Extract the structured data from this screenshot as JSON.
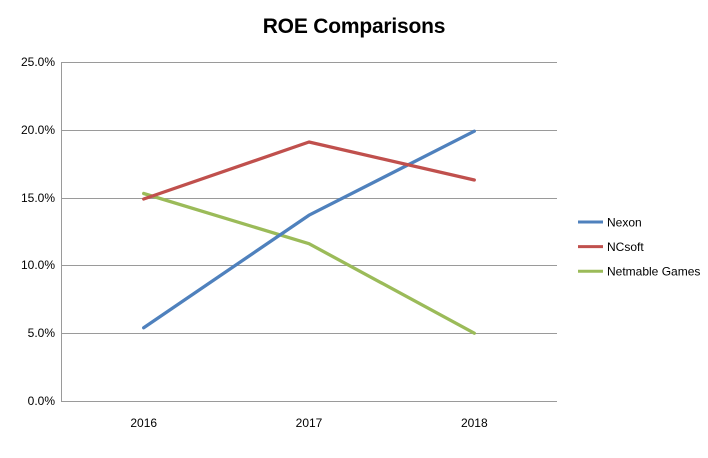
{
  "chart_data": {
    "type": "line",
    "title": "ROE Comparisons",
    "categories": [
      "2016",
      "2017",
      "2018"
    ],
    "series": [
      {
        "name": "Nexon",
        "color": "#4F81BD",
        "values": [
          5.4,
          13.7,
          19.9
        ]
      },
      {
        "name": "NCsoft",
        "color": "#C0504D",
        "values": [
          14.9,
          19.1,
          16.3
        ]
      },
      {
        "name": "Netmable Games",
        "color": "#9BBB59",
        "values": [
          15.3,
          11.6,
          5.0
        ]
      }
    ],
    "xlabel": "",
    "ylabel": "",
    "ylim": [
      0,
      25
    ],
    "ytick_step": 5,
    "ytick_labels": [
      "0.0%",
      "5.0%",
      "10.0%",
      "15.0%",
      "20.0%",
      "25.0%"
    ],
    "grid": true,
    "legend_position": "right",
    "colors": {
      "gridline": "#9A9A9A",
      "axis": "#9A9A9A",
      "text": "#000000",
      "background": "#FFFFFF"
    }
  }
}
